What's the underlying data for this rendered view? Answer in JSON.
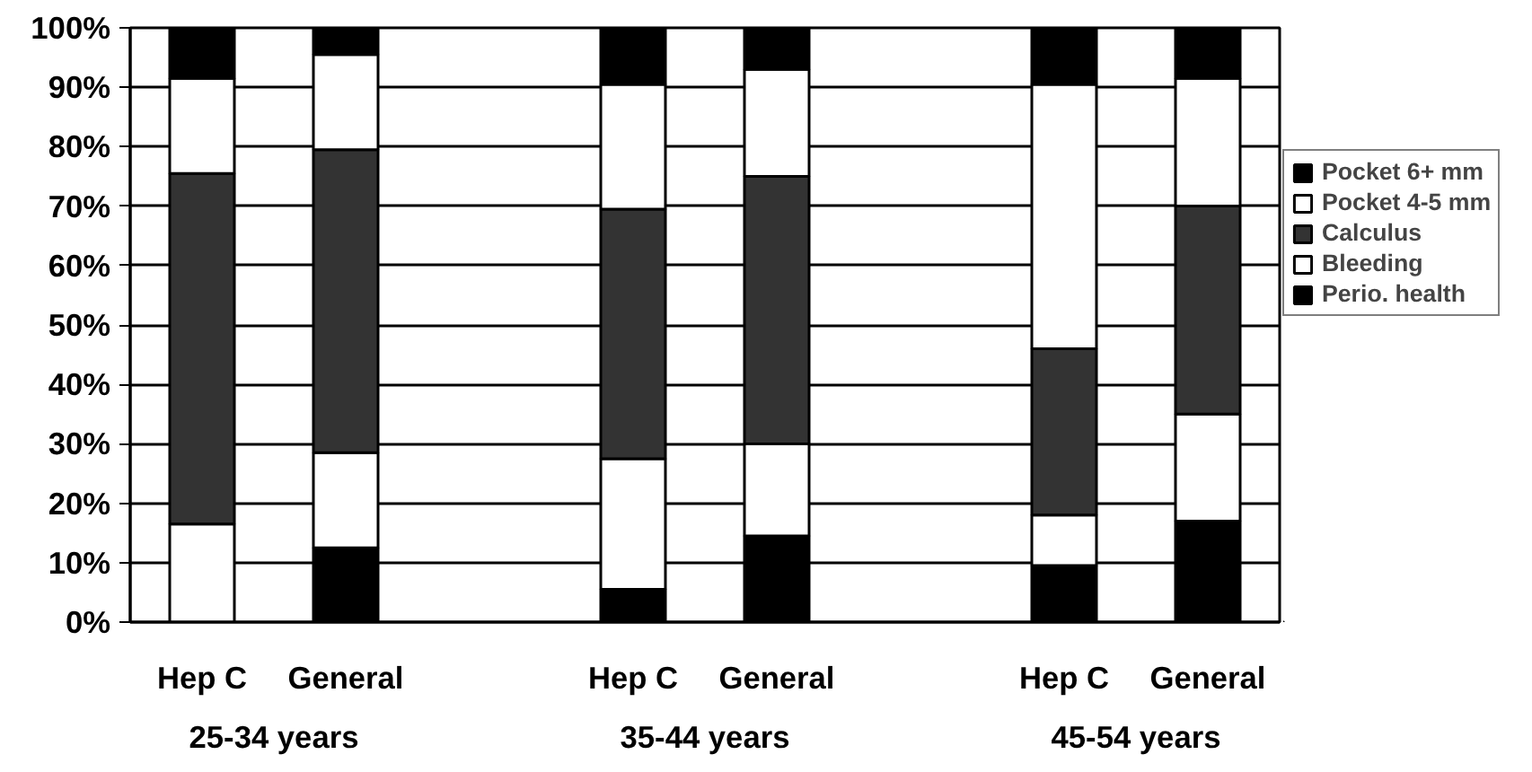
{
  "chart_data": {
    "type": "bar",
    "stacked": true,
    "categories": [
      "Hep C",
      "General",
      null,
      "Hep C",
      "General",
      null,
      "Hep C",
      "General"
    ],
    "series": [
      {
        "name": "Perio. health",
        "color": "#000000",
        "values": [
          0,
          12.5,
          null,
          5.5,
          14.5,
          null,
          9.5,
          17
        ]
      },
      {
        "name": "Bleeding",
        "color": "#ffffff",
        "values": [
          16.5,
          16,
          null,
          22,
          15.5,
          null,
          8.5,
          18
        ]
      },
      {
        "name": "Calculus",
        "color": "#333333",
        "values": [
          59,
          51,
          null,
          42,
          45,
          null,
          28,
          35
        ]
      },
      {
        "name": "Pocket 4-5 mm",
        "color": "#ffffff",
        "values": [
          16,
          16,
          null,
          21,
          18,
          null,
          44.5,
          21.5
        ]
      },
      {
        "name": "Pocket 6+ mm",
        "color": "#000000",
        "values": [
          8.5,
          4.5,
          null,
          9.5,
          7,
          null,
          9.5,
          8.5
        ]
      }
    ],
    "ylim": [
      0,
      100
    ],
    "yticks": [
      {
        "value": 0,
        "label": "0%"
      },
      {
        "value": 10,
        "label": "10%"
      },
      {
        "value": 20,
        "label": "20%"
      },
      {
        "value": 30,
        "label": "30%"
      },
      {
        "value": 40,
        "label": "40%"
      },
      {
        "value": 50,
        "label": "50%"
      },
      {
        "value": 60,
        "label": "60%"
      },
      {
        "value": 70,
        "label": "70%"
      },
      {
        "value": 80,
        "label": "80%"
      },
      {
        "value": 90,
        "label": "90%"
      },
      {
        "value": 100,
        "label": "100%"
      }
    ],
    "grid": "y",
    "legend": "right",
    "annotations": [
      "25-34 years",
      "35-44 years",
      "45-54 years"
    ]
  }
}
